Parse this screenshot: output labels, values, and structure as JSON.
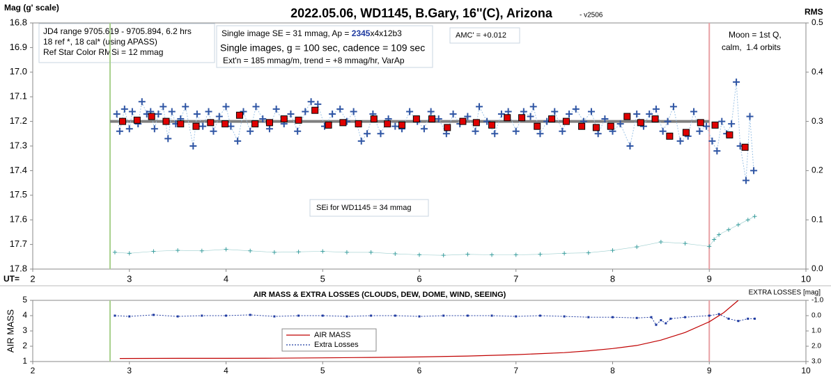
{
  "chart_data": [
    {
      "type": "scatter",
      "title": "2022.05.06, WD1145, B.Gary, 16''(C), Arizona",
      "subtitle": "- v2506",
      "y_label": "Mag (g' scale)",
      "y2_label": "RMS",
      "x_label": "UT=",
      "xlim": [
        2,
        10
      ],
      "xticks": [
        2,
        3,
        4,
        5,
        6,
        7,
        8,
        9,
        10
      ],
      "ylim": [
        16.8,
        17.8
      ],
      "invert_y": true,
      "yticks": [
        16.8,
        16.9,
        {
          "value": 17.0,
          "label": "17.0"
        },
        17.1,
        17.2,
        17.3,
        17.4,
        17.5,
        17.6,
        17.7,
        17.8
      ],
      "y2lim": [
        0,
        0.5
      ],
      "y2ticks": [
        0.5,
        0.4,
        0.3,
        0.2,
        0.1,
        {
          "value": 0,
          "label": "0.0"
        }
      ],
      "vlines": [
        {
          "x": 2.8,
          "color": "#a9d18e"
        },
        {
          "x": 9.0,
          "color": "#e8a0a4"
        }
      ],
      "trend": {
        "x": [
          2.8,
          9.0
        ],
        "y": [
          17.2,
          17.2
        ],
        "color": "#7f7f7f"
      },
      "annotations": [
        [
          "JD4 range 9705.619 - 9705.894, 6.2 hrs",
          "18 ref *, 18 cal* (using APASS)",
          "Ref Star Color RMSi = 12 mmag"
        ],
        [
          [
            "Single image SE = 31 mmag, Ap = ",
            "2345",
            "x4x12b3"
          ],
          "Single images, g = 100 sec, cadence = 109 sec",
          "Ext'n = 185 mmag/m, trend = +8 mmag/hr, VarAp"
        ],
        [
          "AMC' = +0.012"
        ],
        [
          "Moon = 1st Q,",
          "calm,  1.4 orbits"
        ],
        [
          "SEi for WD1145 = 34 mmag"
        ]
      ],
      "series": [
        {
          "marker": "cross",
          "color": "#2f55a4",
          "line_color": "#9dc3e6",
          "x": [
            2.87,
            2.9,
            2.95,
            3.0,
            3.03,
            3.09,
            3.13,
            3.18,
            3.22,
            3.26,
            3.3,
            3.35,
            3.4,
            3.44,
            3.48,
            3.53,
            3.58,
            3.66,
            3.7,
            3.76,
            3.82,
            3.87,
            3.93,
            4.0,
            4.05,
            4.12,
            4.18,
            4.25,
            4.31,
            4.38,
            4.45,
            4.52,
            4.6,
            4.67,
            4.74,
            4.82,
            4.88,
            4.95,
            5.02,
            5.1,
            5.18,
            5.25,
            5.32,
            5.4,
            5.46,
            5.52,
            5.6,
            5.68,
            5.75,
            5.82,
            5.9,
            5.98,
            6.05,
            6.12,
            6.2,
            6.28,
            6.35,
            6.42,
            6.5,
            6.58,
            6.62,
            6.7,
            6.78,
            6.85,
            6.92,
            7.0,
            7.08,
            7.15,
            7.18,
            7.25,
            7.32,
            7.4,
            7.48,
            7.55,
            7.62,
            7.7,
            7.78,
            7.85,
            7.92,
            8.0,
            8.08,
            8.18,
            8.25,
            8.32,
            8.38,
            8.45,
            8.52,
            8.57,
            8.63,
            8.7,
            8.78,
            8.84,
            8.9,
            8.97,
            9.03,
            9.08,
            9.13,
            9.18,
            9.23,
            9.28,
            9.32,
            9.38,
            9.42,
            9.46
          ],
          "values": [
            17.17,
            17.24,
            17.15,
            17.23,
            17.16,
            17.21,
            17.12,
            17.17,
            17.16,
            17.23,
            17.17,
            17.14,
            17.27,
            17.16,
            17.21,
            17.19,
            17.14,
            17.3,
            17.17,
            17.22,
            17.16,
            17.24,
            17.18,
            17.14,
            17.22,
            17.28,
            17.16,
            17.24,
            17.14,
            17.19,
            17.23,
            17.15,
            17.21,
            17.17,
            17.24,
            17.16,
            17.12,
            17.13,
            17.22,
            17.17,
            17.15,
            17.2,
            17.16,
            17.28,
            17.25,
            17.17,
            17.25,
            17.19,
            17.22,
            17.23,
            17.16,
            17.2,
            17.23,
            17.16,
            17.19,
            17.25,
            17.17,
            17.21,
            17.18,
            17.24,
            17.14,
            17.2,
            17.25,
            17.17,
            17.16,
            17.24,
            17.16,
            17.18,
            17.14,
            17.25,
            17.2,
            17.16,
            17.24,
            17.17,
            17.15,
            17.2,
            17.16,
            17.25,
            17.19,
            17.24,
            17.21,
            17.3,
            17.17,
            17.22,
            17.17,
            17.15,
            17.24,
            17.2,
            17.14,
            17.28,
            17.26,
            17.16,
            17.24,
            17.22,
            17.28,
            17.32,
            17.2,
            17.25,
            17.21,
            17.04,
            17.3,
            17.44,
            17.18,
            17.4
          ]
        },
        {
          "marker": "square",
          "color": "#e00000",
          "x": [
            2.93,
            3.08,
            3.23,
            3.38,
            3.53,
            3.69,
            3.84,
            3.99,
            4.14,
            4.3,
            4.45,
            4.6,
            4.75,
            4.92,
            5.06,
            5.21,
            5.37,
            5.53,
            5.67,
            5.82,
            5.97,
            6.13,
            6.29,
            6.45,
            6.59,
            6.75,
            6.91,
            7.06,
            7.22,
            7.37,
            7.52,
            7.68,
            7.83,
            7.98,
            8.15,
            8.29,
            8.44,
            8.59,
            8.76,
            8.91,
            9.06,
            9.21,
            9.37
          ],
          "values": [
            17.2,
            17.195,
            17.18,
            17.2,
            17.21,
            17.22,
            17.205,
            17.21,
            17.175,
            17.21,
            17.205,
            17.19,
            17.195,
            17.155,
            17.215,
            17.205,
            17.21,
            17.19,
            17.21,
            17.215,
            17.19,
            17.19,
            17.225,
            17.2,
            17.205,
            17.215,
            17.185,
            17.185,
            17.22,
            17.19,
            17.2,
            17.22,
            17.225,
            17.22,
            17.18,
            17.205,
            17.19,
            17.26,
            17.245,
            17.205,
            17.215,
            17.255,
            17.305
          ]
        },
        {
          "marker": "small-cross",
          "color": "#3a9e9e",
          "axis": "y2",
          "x": [
            2.85,
            3.0,
            3.25,
            3.5,
            3.75,
            4.0,
            4.25,
            4.5,
            4.75,
            5.0,
            5.25,
            5.5,
            5.75,
            6.0,
            6.25,
            6.5,
            6.75,
            7.0,
            7.25,
            7.5,
            7.75,
            8.0,
            8.25,
            8.5,
            8.75,
            9.0,
            9.05,
            9.1,
            9.2,
            9.3,
            9.4,
            9.47
          ],
          "values": [
            0.034,
            0.032,
            0.036,
            0.038,
            0.037,
            0.04,
            0.037,
            0.034,
            0.035,
            0.036,
            0.034,
            0.034,
            0.031,
            0.029,
            0.028,
            0.03,
            0.029,
            0.029,
            0.03,
            0.032,
            0.033,
            0.038,
            0.045,
            0.055,
            0.052,
            0.046,
            0.06,
            0.07,
            0.08,
            0.09,
            0.1,
            0.107
          ]
        }
      ]
    },
    {
      "type": "line",
      "title": "AIR MASS & EXTRA LOSSES (CLOUDS, DEW, DOME, WIND, SEEING)",
      "y_label": "AIR MASS",
      "y2_label": "EXTRA LOSSES [mag]",
      "xlim": [
        2,
        10
      ],
      "xticks": [
        2,
        3,
        4,
        5,
        6,
        7,
        8,
        9,
        10
      ],
      "ylim": [
        1,
        5
      ],
      "yticks": [
        1,
        2,
        3,
        4,
        5
      ],
      "y2lim": [
        -1,
        3
      ],
      "invert_y2": true,
      "y2ticks": [
        {
          "value": -1,
          "label": "-1.0"
        },
        {
          "value": 0,
          "label": "0.0"
        },
        {
          "value": 1,
          "label": "1.0"
        },
        {
          "value": 2,
          "label": "2.0"
        },
        {
          "value": 3,
          "label": "3.0"
        }
      ],
      "vlines": [
        {
          "x": 2.8,
          "color": "#a9d18e"
        },
        {
          "x": 9.0,
          "color": "#e8a0a4"
        }
      ],
      "legend": "lower center",
      "series": [
        {
          "name": "AIR MASS",
          "marker": "line",
          "color": "#c00000",
          "x": [
            2.9,
            3.5,
            4,
            4.5,
            5,
            5.5,
            6,
            6.5,
            7,
            7.5,
            7.75,
            8,
            8.25,
            8.5,
            8.75,
            9,
            9.15,
            9.3
          ],
          "values": [
            1.2,
            1.21,
            1.21,
            1.22,
            1.24,
            1.27,
            1.3,
            1.36,
            1.45,
            1.58,
            1.7,
            1.85,
            2.05,
            2.4,
            2.9,
            3.6,
            4.2,
            5.0
          ]
        },
        {
          "name": "Extra Losses",
          "marker": "dotted-square",
          "color": "#1f3aa0",
          "axis": "y2",
          "x": [
            2.85,
            3.0,
            3.25,
            3.5,
            3.75,
            4.0,
            4.25,
            4.5,
            4.75,
            5.0,
            5.25,
            5.5,
            5.75,
            6.0,
            6.25,
            6.5,
            6.75,
            7.0,
            7.25,
            7.5,
            7.75,
            8.0,
            8.25,
            8.4,
            8.45,
            8.5,
            8.55,
            8.6,
            8.75,
            9.0,
            9.1,
            9.2,
            9.3,
            9.4,
            9.47
          ],
          "values": [
            0.0,
            0.05,
            -0.05,
            0.05,
            0.0,
            0.0,
            -0.05,
            0.05,
            0.0,
            0.0,
            0.05,
            0.0,
            0.0,
            0.05,
            0.0,
            0.0,
            0.0,
            0.05,
            0.0,
            0.05,
            0.1,
            0.1,
            0.15,
            0.1,
            0.6,
            0.3,
            0.5,
            0.2,
            0.1,
            0.0,
            -0.1,
            0.2,
            0.35,
            0.2,
            0.2
          ]
        }
      ]
    }
  ]
}
